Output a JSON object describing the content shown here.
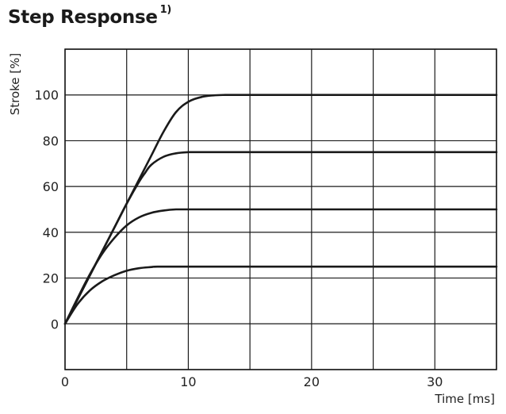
{
  "header": {
    "title": "Step Response",
    "title_note": "1)"
  },
  "chart_data": {
    "type": "line",
    "title": "Step Response",
    "xlabel": "Time [ms]",
    "ylabel": "Stroke [%]",
    "xlim": [
      0,
      35
    ],
    "ylim": [
      -20,
      120
    ],
    "xticks": [
      0,
      10,
      20,
      30
    ],
    "yticks": [
      0,
      20,
      40,
      60,
      80,
      100
    ],
    "x_grid_step": 5,
    "y_grid_step": 20,
    "grid": true,
    "line_color": "#1a1a1a",
    "grid_color": "#1a1a1a",
    "series": [
      {
        "x": [
          0,
          1,
          2,
          3,
          4,
          5,
          6,
          7,
          8,
          9,
          10,
          11,
          12,
          13,
          15,
          20,
          25,
          30,
          35
        ],
        "y": [
          0,
          10.5,
          21,
          31.5,
          42,
          52.5,
          63,
          73.5,
          84,
          92.5,
          97,
          99,
          99.8,
          100,
          100,
          100,
          100,
          100,
          100
        ]
      },
      {
        "x": [
          0,
          1,
          2,
          3,
          4,
          5,
          6,
          6.5,
          7,
          8,
          9,
          10,
          11,
          15,
          20,
          25,
          30,
          35
        ],
        "y": [
          0,
          10.5,
          21,
          31.5,
          42,
          52.5,
          62,
          66,
          69.5,
          73,
          74.5,
          75,
          75,
          75,
          75,
          75,
          75,
          75
        ]
      },
      {
        "x": [
          0,
          1,
          2,
          3,
          4,
          5,
          6,
          7,
          8,
          9,
          10,
          15,
          20,
          25,
          30,
          35
        ],
        "y": [
          0,
          11,
          21.5,
          30.5,
          37.5,
          43,
          46.5,
          48.5,
          49.5,
          50,
          50,
          50,
          50,
          50,
          50,
          50
        ]
      },
      {
        "x": [
          0,
          1,
          2,
          3,
          4,
          5,
          6,
          7,
          7.5,
          10,
          15,
          20,
          25,
          30,
          35
        ],
        "y": [
          0,
          8.5,
          14.5,
          18.5,
          21.2,
          23.2,
          24.3,
          24.8,
          25,
          25,
          25,
          25,
          25,
          25,
          25
        ]
      }
    ]
  }
}
